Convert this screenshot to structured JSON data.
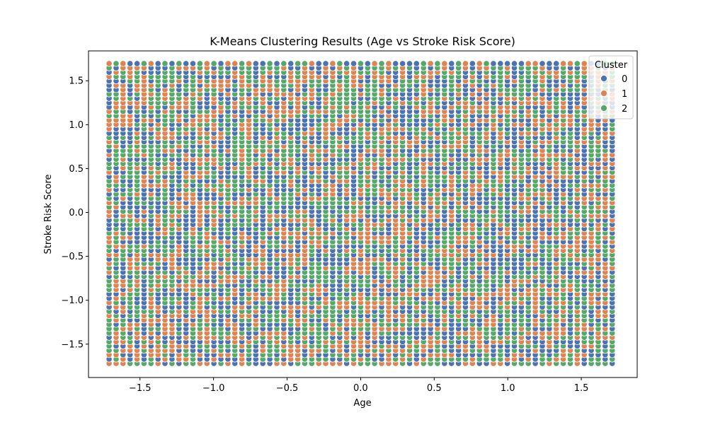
{
  "chart_data": {
    "type": "scatter",
    "title": "K-Means Clustering Results (Age vs Stroke Risk Score)",
    "xlabel": "Age",
    "ylabel": "Stroke Risk Score",
    "xlim": [
      -1.85,
      1.88
    ],
    "ylim": [
      -1.88,
      1.84
    ],
    "grid": false,
    "legend_placement": "top-right",
    "legend_title": "Cluster",
    "x_ticks": [
      -1.5,
      -1.0,
      -0.5,
      0.0,
      0.5,
      1.0,
      1.5
    ],
    "x_tick_labels": [
      "−1.5",
      "−1.0",
      "−0.5",
      "0.0",
      "0.5",
      "1.0",
      "1.5"
    ],
    "y_ticks": [
      -1.5,
      -1.0,
      -0.5,
      0.0,
      0.5,
      1.0,
      1.5
    ],
    "y_tick_labels": [
      "−1.5",
      "−1.0",
      "−0.5",
      "0.0",
      "0.5",
      "1.0",
      "1.5"
    ],
    "point_grid": {
      "x_range": [
        -1.71,
        1.71
      ],
      "y_range": [
        -1.72,
        1.72
      ],
      "x_step": 0.0475,
      "y_step": 0.0495
    },
    "series": [
      {
        "name": "0",
        "color": "#4c72b0"
      },
      {
        "name": "1",
        "color": "#dd8452"
      },
      {
        "name": "2",
        "color": "#55a868"
      }
    ]
  }
}
